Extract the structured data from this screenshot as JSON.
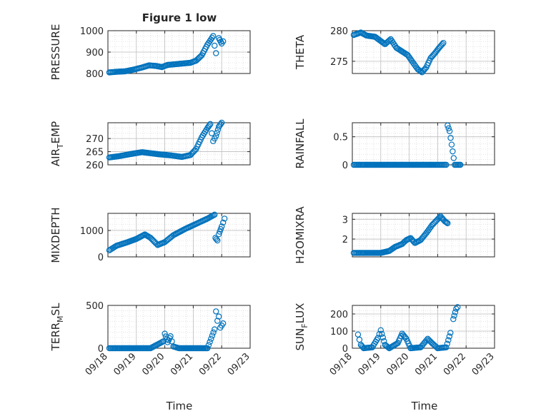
{
  "figure": {
    "title": "Figure 1 low",
    "marker_color": "#0072BD",
    "axis_color": "#262626",
    "grid_color": "#bdbdbd",
    "date_ticks": [
      "09/18",
      "09/19",
      "09/20",
      "09/21",
      "09/22",
      "09/23"
    ],
    "xlabel": "Time"
  },
  "chart_data": [
    {
      "type": "scatter",
      "ylabel": "PRESSURE",
      "title": "Figure 1 low",
      "xlim": [
        "09/18",
        "09/23"
      ],
      "ylim": [
        800,
        1000
      ],
      "yticks": [
        800,
        900,
        1000
      ],
      "yticklabels": [
        "800",
        "900",
        "1000"
      ],
      "grid": true,
      "points": [
        [
          0.05,
          805
        ],
        [
          0.3,
          808
        ],
        [
          0.6,
          810
        ],
        [
          0.9,
          818
        ],
        [
          1.2,
          828
        ],
        [
          1.45,
          838
        ],
        [
          1.7,
          835
        ],
        [
          1.9,
          830
        ],
        [
          2.1,
          840
        ],
        [
          2.5,
          845
        ],
        [
          2.9,
          850
        ],
        [
          3.1,
          860
        ],
        [
          3.3,
          885
        ],
        [
          3.5,
          935
        ],
        [
          3.7,
          975
        ],
        [
          3.75,
          930
        ],
        [
          3.8,
          895
        ],
        [
          3.9,
          965
        ],
        [
          4.0,
          940
        ],
        [
          4.05,
          950
        ]
      ]
    },
    {
      "type": "scatter",
      "ylabel": "THETA",
      "xlim": [
        "09/18",
        "09/23"
      ],
      "ylim": [
        273,
        280
      ],
      "yticks": [
        275,
        280
      ],
      "yticklabels": [
        "275",
        "280"
      ],
      "grid": true,
      "points": [
        [
          0.05,
          279.3
        ],
        [
          0.3,
          279.7
        ],
        [
          0.5,
          279.2
        ],
        [
          0.8,
          279.0
        ],
        [
          1.0,
          278.3
        ],
        [
          1.15,
          277.8
        ],
        [
          1.35,
          278.6
        ],
        [
          1.55,
          277.2
        ],
        [
          1.75,
          276.6
        ],
        [
          1.95,
          276.0
        ],
        [
          2.1,
          275.0
        ],
        [
          2.3,
          273.7
        ],
        [
          2.45,
          273.2
        ],
        [
          2.6,
          274.0
        ],
        [
          2.75,
          275.5
        ],
        [
          2.9,
          276.3
        ],
        [
          3.05,
          277.2
        ],
        [
          3.2,
          278.0
        ]
      ]
    },
    {
      "type": "scatter",
      "ylabel": "AIR_TEMP",
      "ylabel_display": [
        "AIR",
        "T",
        "EMP"
      ],
      "xlim": [
        "09/18",
        "09/23"
      ],
      "ylim": [
        260,
        276
      ],
      "yticks": [
        260,
        265,
        270
      ],
      "yticklabels": [
        "260",
        "265",
        "270"
      ],
      "grid": true,
      "points": [
        [
          0.05,
          262.8
        ],
        [
          0.4,
          263.3
        ],
        [
          0.8,
          264.1
        ],
        [
          1.2,
          264.8
        ],
        [
          1.5,
          264.4
        ],
        [
          1.8,
          264.0
        ],
        [
          2.2,
          263.6
        ],
        [
          2.6,
          263.0
        ],
        [
          2.9,
          263.7
        ],
        [
          3.1,
          266.0
        ],
        [
          3.3,
          270.5
        ],
        [
          3.5,
          274.0
        ],
        [
          3.6,
          275.5
        ],
        [
          3.65,
          272.0
        ],
        [
          3.7,
          269.0
        ],
        [
          3.8,
          271.0
        ],
        [
          3.9,
          274.5
        ],
        [
          4.0,
          276.0
        ]
      ]
    },
    {
      "type": "scatter",
      "ylabel": "RAINFALL",
      "xlim": [
        "09/18",
        "09/23"
      ],
      "ylim": [
        0,
        0.75
      ],
      "yticks": [
        0,
        0.5
      ],
      "yticklabels": [
        "0",
        "0.5"
      ],
      "grid": true,
      "points": [
        [
          0.05,
          0
        ],
        [
          0.5,
          0
        ],
        [
          1.0,
          0
        ],
        [
          1.5,
          0
        ],
        [
          2.0,
          0
        ],
        [
          2.5,
          0
        ],
        [
          3.0,
          0
        ],
        [
          3.3,
          0
        ],
        [
          3.35,
          0.7
        ],
        [
          3.42,
          0.6
        ],
        [
          3.6,
          0
        ],
        [
          3.8,
          0
        ]
      ]
    },
    {
      "type": "scatter",
      "ylabel": "MIXDEPTH",
      "xlim": [
        "09/18",
        "09/23"
      ],
      "ylim": [
        0,
        1650
      ],
      "yticks": [
        0,
        1000
      ],
      "yticklabels": [
        "0",
        "1000"
      ],
      "grid": true,
      "points": [
        [
          0.05,
          250
        ],
        [
          0.3,
          420
        ],
        [
          0.7,
          560
        ],
        [
          1.0,
          680
        ],
        [
          1.3,
          850
        ],
        [
          1.5,
          720
        ],
        [
          1.75,
          450
        ],
        [
          2.0,
          560
        ],
        [
          2.3,
          820
        ],
        [
          2.7,
          1050
        ],
        [
          3.1,
          1250
        ],
        [
          3.5,
          1450
        ],
        [
          3.75,
          1600
        ],
        [
          3.78,
          720
        ],
        [
          3.85,
          620
        ],
        [
          3.9,
          860
        ],
        [
          4.0,
          1150
        ],
        [
          4.1,
          1450
        ]
      ]
    },
    {
      "type": "scatter",
      "ylabel": "H2OMIXRA",
      "xlim": [
        "09/18",
        "09/23"
      ],
      "ylim": [
        1.1,
        3.3
      ],
      "yticks": [
        2,
        3
      ],
      "yticklabels": [
        "2",
        "3"
      ],
      "grid": true,
      "points": [
        [
          0.05,
          1.3
        ],
        [
          0.5,
          1.3
        ],
        [
          1.0,
          1.3
        ],
        [
          1.3,
          1.4
        ],
        [
          1.5,
          1.6
        ],
        [
          1.75,
          1.75
        ],
        [
          1.9,
          1.95
        ],
        [
          2.05,
          2.05
        ],
        [
          2.2,
          1.8
        ],
        [
          2.4,
          1.95
        ],
        [
          2.6,
          2.3
        ],
        [
          2.8,
          2.7
        ],
        [
          3.0,
          3.0
        ],
        [
          3.1,
          3.15
        ],
        [
          3.25,
          2.9
        ],
        [
          3.35,
          2.8
        ]
      ]
    },
    {
      "type": "scatter",
      "ylabel": "TERR_MSL",
      "ylabel_display": [
        "TERR",
        "M",
        "SL"
      ],
      "xlim": [
        "09/18",
        "09/23"
      ],
      "ylim": [
        0,
        500
      ],
      "yticks": [
        0,
        500
      ],
      "yticklabels": [
        "0",
        "500"
      ],
      "grid": true,
      "points": [
        [
          0.05,
          0
        ],
        [
          0.5,
          0
        ],
        [
          1.0,
          0
        ],
        [
          1.5,
          0
        ],
        [
          1.95,
          80
        ],
        [
          2.0,
          170
        ],
        [
          2.1,
          70
        ],
        [
          2.2,
          140
        ],
        [
          2.3,
          20
        ],
        [
          2.5,
          0
        ],
        [
          3.0,
          0
        ],
        [
          3.5,
          0
        ],
        [
          3.75,
          220
        ],
        [
          3.8,
          430
        ],
        [
          3.85,
          320
        ],
        [
          3.9,
          370
        ],
        [
          3.95,
          240
        ],
        [
          4.05,
          290
        ]
      ]
    },
    {
      "type": "scatter",
      "ylabel": "SUN_FLUX",
      "ylabel_display": [
        "SUN",
        "F",
        "LUX"
      ],
      "xlim": [
        "09/18",
        "09/23"
      ],
      "ylim": [
        0,
        250
      ],
      "yticks": [
        0,
        100,
        200
      ],
      "yticklabels": [
        "0",
        "100",
        "200"
      ],
      "grid": true,
      "points": [
        [
          0.2,
          80
        ],
        [
          0.3,
          20
        ],
        [
          0.4,
          0
        ],
        [
          0.7,
          5
        ],
        [
          0.9,
          60
        ],
        [
          1.0,
          105
        ],
        [
          1.15,
          20
        ],
        [
          1.3,
          0
        ],
        [
          1.6,
          30
        ],
        [
          1.75,
          85
        ],
        [
          1.9,
          55
        ],
        [
          2.05,
          0
        ],
        [
          2.4,
          5
        ],
        [
          2.65,
          55
        ],
        [
          2.8,
          30
        ],
        [
          3.0,
          0
        ],
        [
          3.3,
          5
        ],
        [
          3.45,
          90
        ],
        [
          3.55,
          170
        ],
        [
          3.65,
          230
        ],
        [
          3.7,
          240
        ]
      ]
    }
  ]
}
